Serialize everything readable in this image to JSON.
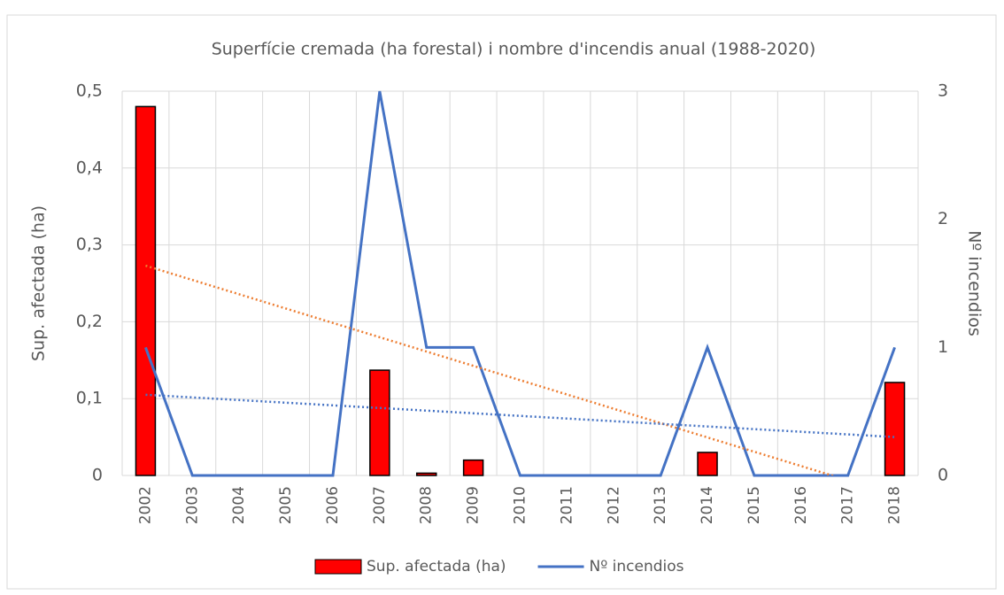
{
  "chart_data": {
    "type": "bar_line",
    "title": "Superfície cremada (ha forestal) i nombre d'incendis anual (1988-2020)",
    "y_label": "Sup. afectada (ha)",
    "y2_label": "Nº incendios",
    "categories": [
      "2002",
      "2003",
      "2004",
      "2005",
      "2006",
      "2007",
      "2008",
      "2009",
      "2010",
      "2011",
      "2012",
      "2013",
      "2014",
      "2015",
      "2016",
      "2017",
      "2018"
    ],
    "series": [
      {
        "name": "Sup. afectada (ha)",
        "type": "bar",
        "color": "#ff0000",
        "axis": "y",
        "values": [
          0.48,
          0,
          0,
          0,
          0,
          0.137,
          0.003,
          0.02,
          0,
          0,
          0,
          0,
          0.03,
          0,
          0,
          0,
          0.121
        ]
      },
      {
        "name": "Nº incendios",
        "type": "line",
        "color": "#4472c4",
        "axis": "y2",
        "values": [
          1,
          0,
          0,
          0,
          0,
          3,
          1,
          1,
          0,
          0,
          0,
          0,
          1,
          0,
          0,
          0,
          1
        ]
      }
    ],
    "trendlines": [
      {
        "axis": "y",
        "color": "#ed7d31",
        "values": [
          0.273,
          -0.025
        ]
      },
      {
        "axis": "y2",
        "color": "#4472c4",
        "values": [
          0.63,
          0.3
        ]
      }
    ],
    "ylim": [
      0,
      0.5
    ],
    "yticks": [
      0,
      {
        "value": 0.1,
        "label": "0,1"
      },
      {
        "value": 0.2,
        "label": "0,2"
      },
      {
        "value": 0.3,
        "label": "0,3"
      },
      {
        "value": 0.4,
        "label": "0,4"
      },
      {
        "value": 0.5,
        "label": "0,5"
      }
    ],
    "y2lim": [
      0,
      3
    ],
    "y2ticks": [
      0,
      1,
      2,
      3
    ],
    "grid": true,
    "legend": "bottom"
  }
}
